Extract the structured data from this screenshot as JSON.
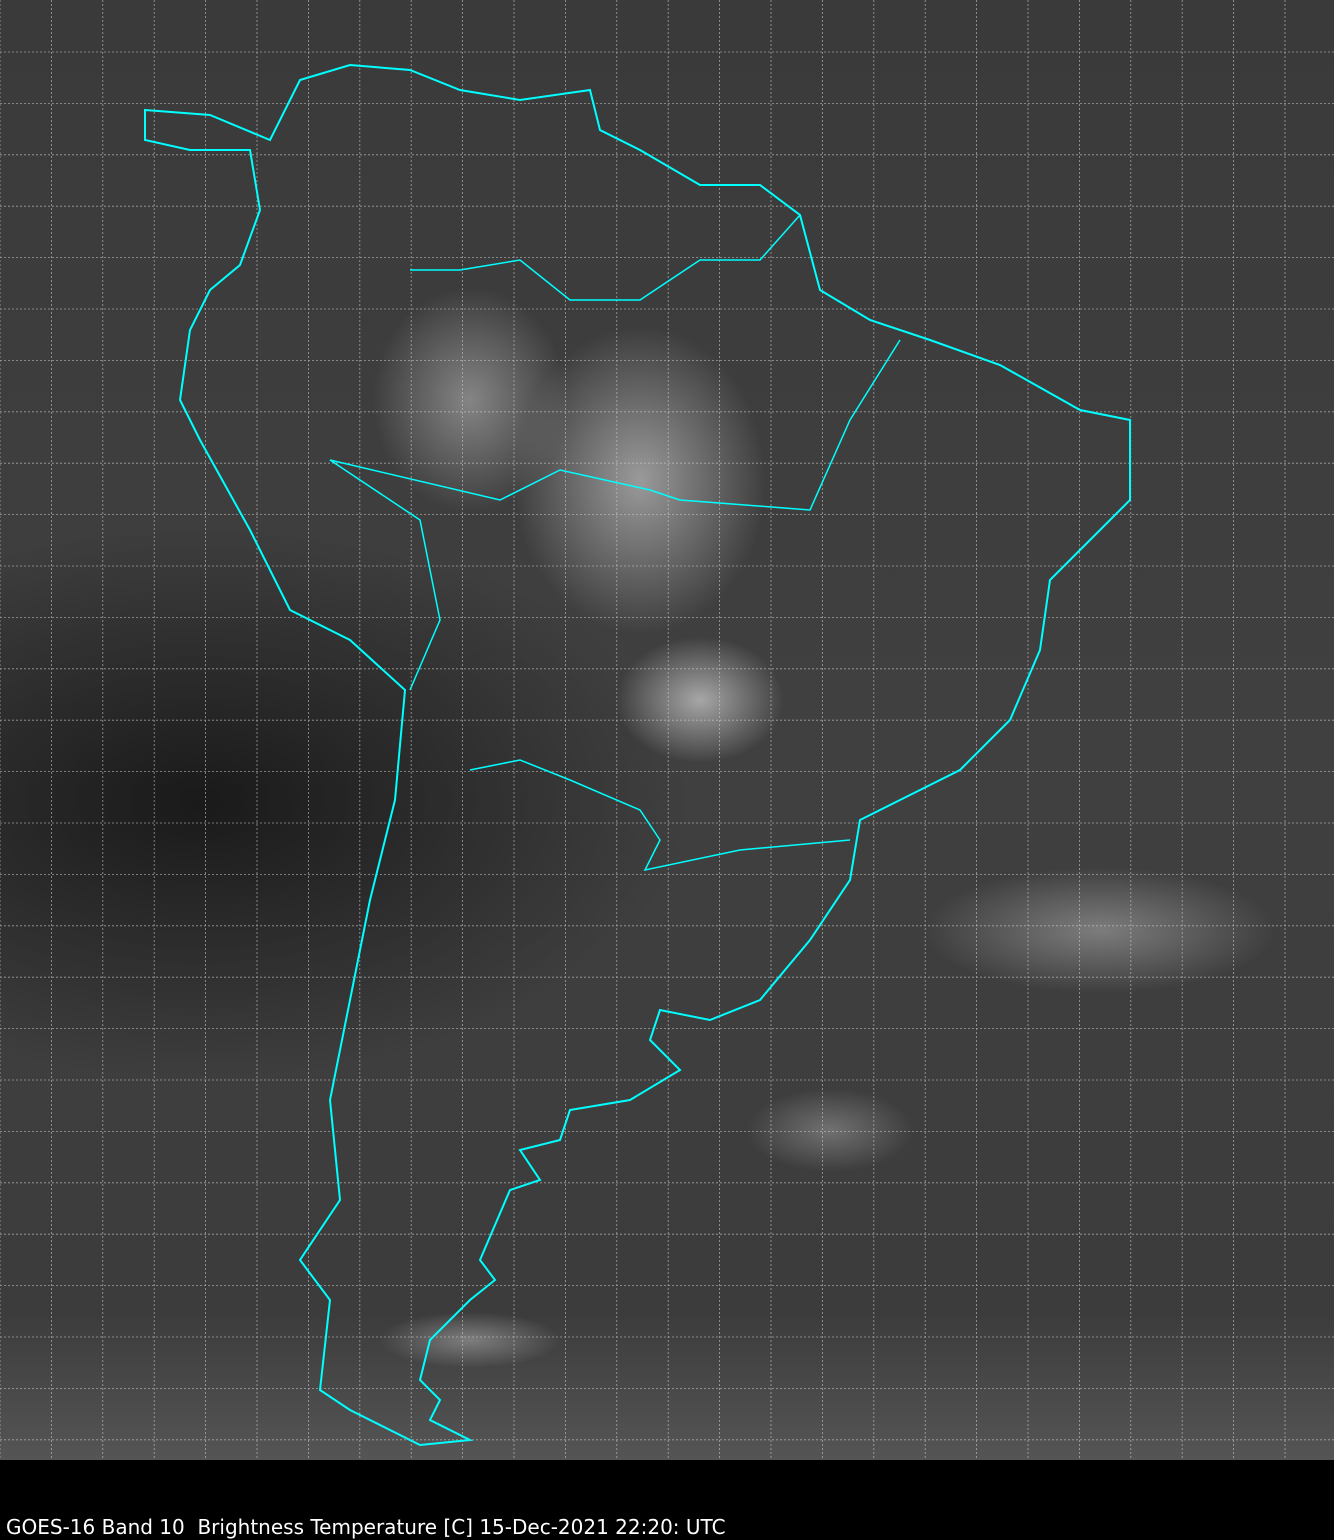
{
  "map": {
    "caption": "GOES-16 Band 10  Brightness Temperature [C] 15-Dec-2021 22:20: UTC",
    "region": "South America",
    "border_color": "#00ffff",
    "grid_color": "#cccccc",
    "grid": true
  }
}
